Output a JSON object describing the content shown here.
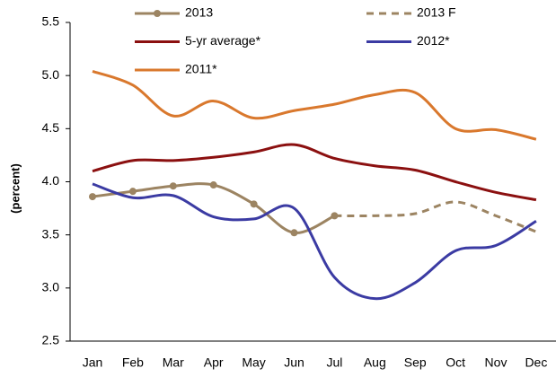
{
  "chart_data": {
    "type": "line",
    "y_label": "(percent)",
    "categories": [
      "Jan",
      "Feb",
      "Mar",
      "Apr",
      "May",
      "Jun",
      "Jul",
      "Aug",
      "Sep",
      "Oct",
      "Nov",
      "Dec"
    ],
    "series": [
      {
        "name": "2013",
        "color": "#9c8462",
        "marker": "circle",
        "dashed": false,
        "values": [
          3.86,
          3.91,
          3.96,
          3.97,
          3.79,
          3.52,
          3.68,
          null,
          null,
          null,
          null,
          null
        ]
      },
      {
        "name": "2013 F",
        "color": "#9c8462",
        "dashed": true,
        "values": [
          null,
          null,
          null,
          null,
          null,
          null,
          3.68,
          3.68,
          3.7,
          3.81,
          3.68,
          3.53
        ]
      },
      {
        "name": "5-yr average*",
        "color": "#8b1010",
        "dashed": false,
        "values": [
          4.1,
          4.2,
          4.2,
          4.23,
          4.28,
          4.35,
          4.22,
          4.15,
          4.11,
          4.0,
          3.9,
          3.83
        ]
      },
      {
        "name": "2012*",
        "color": "#3b3ba3",
        "dashed": false,
        "values": [
          3.98,
          3.85,
          3.87,
          3.67,
          3.65,
          3.75,
          3.1,
          2.9,
          3.05,
          3.35,
          3.4,
          3.63
        ]
      },
      {
        "name": "2011*",
        "color": "#d9782d",
        "dashed": false,
        "values": [
          5.04,
          4.91,
          4.62,
          4.76,
          4.6,
          4.67,
          4.73,
          4.82,
          4.84,
          4.5,
          4.49,
          4.4
        ]
      }
    ],
    "ylim": [
      2.5,
      5.5
    ],
    "yticks": [
      {
        "value": 2.5,
        "label": "2.5"
      },
      {
        "value": 3,
        "label": "3.0"
      },
      {
        "value": 3.5,
        "label": "3.5"
      },
      {
        "value": 4,
        "label": "4.0"
      },
      {
        "value": 4.5,
        "label": "4.5"
      },
      {
        "value": 5,
        "label": "5.0"
      },
      {
        "value": 5.5,
        "label": "5.5"
      }
    ],
    "grid": false,
    "legend": "top"
  }
}
